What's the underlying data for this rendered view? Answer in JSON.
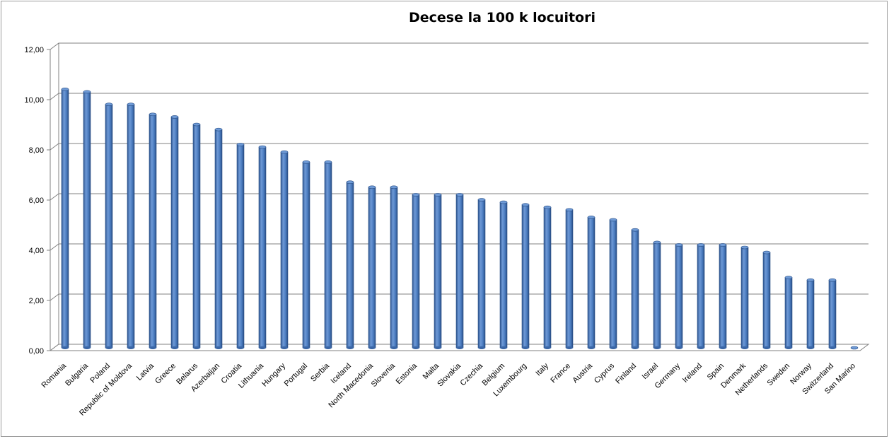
{
  "chart_data": {
    "type": "bar",
    "title": "Decese la 100 k locuitori",
    "xlabel": "",
    "ylabel": "",
    "ylim": [
      0,
      12
    ],
    "yticks": [
      "0,00",
      "2,00",
      "4,00",
      "6,00",
      "8,00",
      "10,00",
      "12,00"
    ],
    "grid": true,
    "legend": "none",
    "bar_color": "#4a7bbf",
    "categories": [
      "Romania",
      "Bulgaria",
      "Poland",
      "Republic of Moldova",
      "Latvia",
      "Greece",
      "Belarus",
      "Azerbaijan",
      "Croatia",
      "Lithuania",
      "Hungary",
      "Portugal",
      "Serbia",
      "Iceland",
      "North Macedonia",
      "Slovenia",
      "Estonia",
      "Malta",
      "Slovakia",
      "Czechia",
      "Belgium",
      "Luxembourg",
      "Italy",
      "France",
      "Austria",
      "Cyprus",
      "Finland",
      "Israel",
      "Germany",
      "Ireland",
      "Spain",
      "Denmark",
      "Netherlands",
      "Sweden",
      "Norway",
      "Switzerland",
      "San Marino"
    ],
    "values": [
      10.3,
      10.2,
      9.7,
      9.7,
      9.3,
      9.2,
      8.9,
      8.7,
      8.1,
      8.0,
      7.8,
      7.4,
      7.4,
      6.6,
      6.4,
      6.4,
      6.1,
      6.1,
      6.1,
      5.9,
      5.8,
      5.7,
      5.6,
      5.5,
      5.2,
      5.1,
      4.7,
      4.2,
      4.1,
      4.1,
      4.1,
      4.0,
      3.8,
      2.8,
      2.7,
      2.7,
      0.0
    ]
  }
}
